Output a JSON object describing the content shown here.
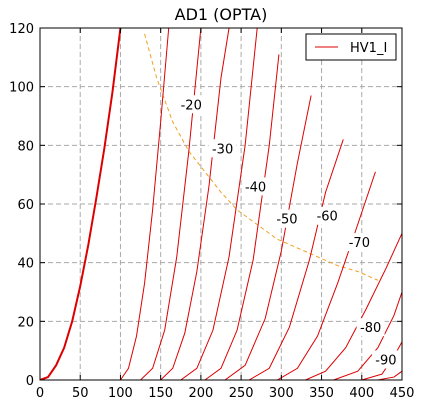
{
  "chart_data": {
    "type": "line",
    "title": "AD1 (OPTA)",
    "xlabel": "",
    "ylabel": "",
    "xlim": [
      0,
      450
    ],
    "ylim": [
      0,
      120
    ],
    "xticks": [
      0,
      50,
      100,
      150,
      200,
      250,
      300,
      350,
      400,
      450
    ],
    "yticks": [
      0,
      20,
      40,
      60,
      80,
      100,
      120
    ],
    "grid": true,
    "legend": {
      "position": "top-right",
      "entries": [
        "HV1_I"
      ]
    },
    "colors": {
      "curves": "#dd0000",
      "dissipation": "#f0a020",
      "grid": "#aaaaaa"
    },
    "bold_curve": {
      "name": "HV1_I",
      "x": [
        0,
        10,
        20,
        30,
        40,
        50,
        60,
        70,
        80,
        90,
        100
      ],
      "y": [
        0,
        1,
        5,
        11,
        20,
        32,
        46,
        62,
        79,
        98,
        120
      ]
    },
    "series": [
      {
        "label": "-20",
        "x": [
          100,
          110,
          120,
          130,
          140,
          150,
          160
        ],
        "y": [
          0,
          4,
          15,
          33,
          58,
          88,
          120
        ]
      },
      {
        "label": "",
        "x": [
          125,
          140,
          155,
          170,
          185,
          200
        ],
        "y": [
          0,
          4,
          17,
          42,
          78,
          120
        ]
      },
      {
        "label": "-30",
        "x": [
          150,
          165,
          180,
          195,
          210,
          225,
          235
        ],
        "y": [
          0,
          4,
          16,
          37,
          66,
          103,
          120
        ]
      },
      {
        "label": "",
        "x": [
          175,
          195,
          215,
          235,
          255,
          270
        ],
        "y": [
          0,
          4,
          17,
          42,
          80,
          120
        ]
      },
      {
        "label": "-40",
        "x": [
          205,
          225,
          245,
          265,
          285,
          297
        ],
        "y": [
          0,
          4,
          17,
          41,
          80,
          111
        ]
      },
      {
        "label": "-50",
        "x": [
          230,
          255,
          280,
          300,
          320,
          337
        ],
        "y": [
          0,
          5,
          21,
          44,
          74,
          97
        ]
      },
      {
        "label": "-60",
        "x": [
          260,
          285,
          310,
          335,
          355,
          377
        ],
        "y": [
          0,
          4,
          18,
          41,
          64,
          82
        ]
      },
      {
        "label": "-70",
        "x": [
          295,
          320,
          345,
          370,
          390,
          417
        ],
        "y": [
          0,
          4,
          15,
          33,
          49,
          71
        ]
      },
      {
        "label": "",
        "x": [
          330,
          355,
          380,
          405,
          430,
          450
        ],
        "y": [
          0,
          3,
          11,
          24,
          38,
          50
        ]
      },
      {
        "label": "-80",
        "x": [
          365,
          395,
          420,
          440,
          450
        ],
        "y": [
          0,
          3,
          11,
          22,
          30
        ]
      },
      {
        "label": "-90",
        "x": [
          400,
          425,
          440,
          450
        ],
        "y": [
          0,
          2,
          8,
          13
        ]
      },
      {
        "label": "",
        "x": [
          420,
          440,
          450
        ],
        "y": [
          0,
          1,
          3
        ]
      }
    ],
    "dissipation_curve": {
      "x": [
        130,
        145,
        165,
        185,
        205,
        225,
        245,
        270,
        295,
        320,
        345,
        370,
        395,
        420
      ],
      "y": [
        118,
        103,
        88,
        78,
        71,
        64,
        58,
        53,
        48,
        45,
        42,
        39,
        37,
        34
      ]
    },
    "curve_labels": [
      {
        "text": "-20",
        "x": 188,
        "y": 94
      },
      {
        "text": "-30",
        "x": 227,
        "y": 79
      },
      {
        "text": "-40",
        "x": 268,
        "y": 66
      },
      {
        "text": "-50",
        "x": 307,
        "y": 55
      },
      {
        "text": "-60",
        "x": 357,
        "y": 56
      },
      {
        "text": "-70",
        "x": 397,
        "y": 47
      },
      {
        "text": "-80",
        "x": 411,
        "y": 18
      },
      {
        "text": "-90",
        "x": 430,
        "y": 7
      }
    ]
  }
}
